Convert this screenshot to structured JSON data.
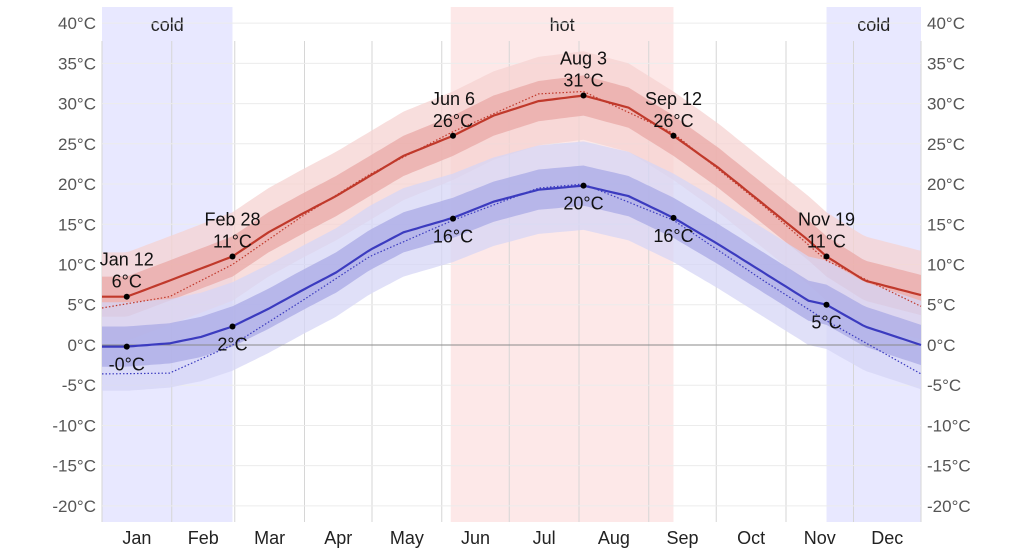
{
  "chart_data": {
    "type": "line",
    "title": "",
    "xlabel": "",
    "ylabel": "",
    "ylim": [
      -22,
      42
    ],
    "yticks": [
      -20,
      -15,
      -10,
      -5,
      0,
      5,
      10,
      15,
      20,
      25,
      30,
      35,
      40
    ],
    "ytick_labels": [
      "-20°C",
      "-15°C",
      "-10°C",
      "-5°C",
      "0°C",
      "5°C",
      "10°C",
      "15°C",
      "20°C",
      "25°C",
      "30°C",
      "35°C",
      "40°C"
    ],
    "months": [
      "Jan",
      "Feb",
      "Mar",
      "Apr",
      "May",
      "Jun",
      "Jul",
      "Aug",
      "Sep",
      "Oct",
      "Nov",
      "Dec"
    ],
    "x_units": "day of year",
    "seasons": [
      {
        "label": "cold",
        "start_day": 1,
        "end_day": 59,
        "color": "#e8e8ff"
      },
      {
        "label": "hot",
        "start_day": 156,
        "end_day": 255,
        "color": "#fde8e8"
      },
      {
        "label": "cold",
        "start_day": 323,
        "end_day": 365,
        "color": "#e8e8ff"
      }
    ],
    "series": [
      {
        "key": "high",
        "color": "#c0392b",
        "band_inner": "#e9a8a6",
        "band_outer": "#f6d3d2",
        "x": [
          1,
          12,
          31,
          45,
          59,
          75,
          90,
          105,
          120,
          135,
          157,
          175,
          195,
          215,
          235,
          255,
          275,
          295,
          315,
          323,
          340,
          365
        ],
        "values": [
          6,
          6,
          8,
          9.5,
          11,
          14,
          16.3,
          18.5,
          21,
          23.5,
          26,
          28.5,
          30.3,
          31,
          29.5,
          26,
          22,
          17.5,
          13,
          11,
          8,
          6.2
        ],
        "band_inner_halfwidth": 2.5,
        "band_outer_halfwidth": 5.5
      },
      {
        "key": "low",
        "color": "#3b3bbf",
        "band_inner": "#a9a9e6",
        "band_outer": "#d6d6f5",
        "x": [
          1,
          12,
          31,
          45,
          59,
          75,
          90,
          105,
          120,
          135,
          157,
          175,
          195,
          215,
          235,
          255,
          275,
          295,
          315,
          323,
          340,
          365
        ],
        "values": [
          -0.2,
          -0.2,
          0.2,
          1,
          2.3,
          4.5,
          6.8,
          9,
          11.8,
          14,
          15.8,
          17.8,
          19.3,
          19.8,
          18.5,
          15.8,
          12.5,
          9,
          5.5,
          5,
          2.3,
          0
        ],
        "band_inner_halfwidth": 2.5,
        "band_outer_halfwidth": 5.5
      },
      {
        "key": "high-dotted",
        "color": "#c0392b",
        "x": [
          1,
          31,
          59,
          90,
          120,
          157,
          195,
          215,
          255,
          295,
          323,
          365
        ],
        "values": [
          4.6,
          6,
          10,
          16,
          21.2,
          26.5,
          31.2,
          31.5,
          26.3,
          17.3,
          10.5,
          4.8
        ]
      },
      {
        "key": "low-dotted",
        "color": "#3b3bbf",
        "x": [
          1,
          31,
          59,
          90,
          120,
          157,
          195,
          215,
          255,
          295,
          323,
          365
        ],
        "values": [
          -3.6,
          -3.5,
          0,
          5.5,
          11,
          15.5,
          19.5,
          20,
          15.5,
          8,
          3,
          -3.6
        ]
      }
    ],
    "annotations": [
      {
        "x": 12,
        "y": 6,
        "date": "Jan 12",
        "value": "6°C",
        "position": "above"
      },
      {
        "x": 12,
        "y": -0.2,
        "date": "",
        "value": "-0°C",
        "position": "below"
      },
      {
        "x": 59,
        "y": 11,
        "date": "Feb 28",
        "value": "11°C",
        "position": "above"
      },
      {
        "x": 59,
        "y": 2.3,
        "date": "",
        "value": "2°C",
        "position": "below"
      },
      {
        "x": 157,
        "y": 26,
        "date": "Jun 6",
        "value": "26°C",
        "position": "above"
      },
      {
        "x": 157,
        "y": 15.7,
        "date": "",
        "value": "16°C",
        "position": "below"
      },
      {
        "x": 215,
        "y": 31,
        "date": "Aug 3",
        "value": "31°C",
        "position": "above"
      },
      {
        "x": 215,
        "y": 19.8,
        "date": "",
        "value": "20°C",
        "position": "below"
      },
      {
        "x": 255,
        "y": 26,
        "date": "Sep 12",
        "value": "26°C",
        "position": "above"
      },
      {
        "x": 255,
        "y": 15.8,
        "date": "",
        "value": "16°C",
        "position": "below"
      },
      {
        "x": 323,
        "y": 11,
        "date": "Nov 19",
        "value": "11°C",
        "position": "above"
      },
      {
        "x": 323,
        "y": 5,
        "date": "",
        "value": "5°C",
        "position": "below"
      }
    ]
  }
}
